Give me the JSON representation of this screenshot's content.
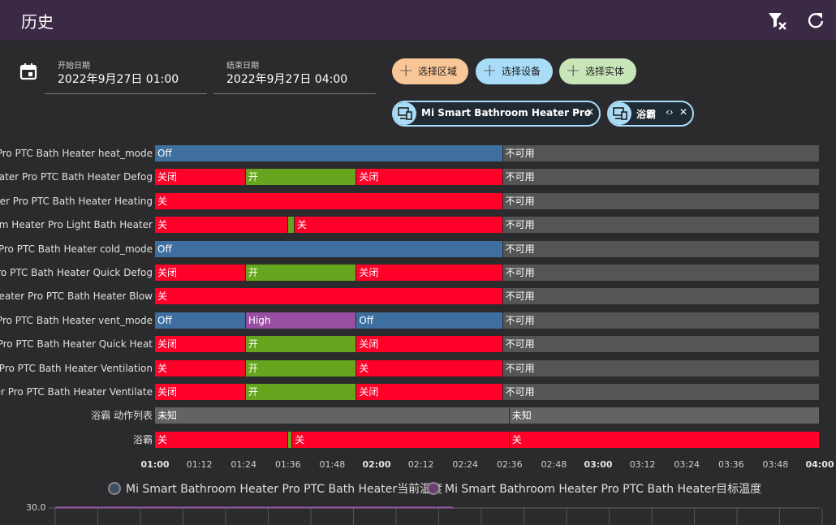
{
  "header": {
    "title": "历史",
    "bg_color": "#3b2a45"
  },
  "date_range": {
    "start_label": "开始日期",
    "start_value": "2022年9月27日 01:00",
    "end_label": "结束日期",
    "end_value": "2022年9月27日 04:00"
  },
  "pickers": [
    {
      "label": "选择区域",
      "color": "#f9c697"
    },
    {
      "label": "选择设备",
      "color": "#a9dcf6"
    },
    {
      "label": "选择实体",
      "color": "#c8e6b8"
    }
  ],
  "chips": [
    {
      "label": "Mi Smart Bathroom Heater Pro",
      "icon": "device-icon"
    },
    {
      "label": "浴霸",
      "icon": "device-icon"
    }
  ],
  "timeline": {
    "colors": {
      "off_blue": "#3f6f9f",
      "red": "#ff0029",
      "green": "#66a61e",
      "purple": "#984ea3",
      "gray": "#555555",
      "unknown": "#636363"
    },
    "rows": [
      {
        "label": "Mi Smart Bathroom Heater Pro PTC Bath Heater heat_mode",
        "segments": [
          {
            "text": "Off",
            "color": "off_blue",
            "start": 0,
            "end": 1.57
          },
          {
            "text": "不可用",
            "color": "gray",
            "start": 1.57,
            "end": 3
          }
        ]
      },
      {
        "label": "Mi Smart Bathroom Heater Pro PTC Bath Heater Defog",
        "segments": [
          {
            "text": "关闭",
            "color": "red",
            "start": 0,
            "end": 0.41
          },
          {
            "text": "开",
            "color": "green",
            "start": 0.41,
            "end": 0.91
          },
          {
            "text": "关闭",
            "color": "red",
            "start": 0.91,
            "end": 1.57
          },
          {
            "text": "不可用",
            "color": "gray",
            "start": 1.57,
            "end": 3
          }
        ]
      },
      {
        "label": "Mi Smart Bathroom Heater Pro PTC Bath Heater Heating",
        "segments": [
          {
            "text": "关",
            "color": "red",
            "start": 0,
            "end": 1.57
          },
          {
            "text": "不可用",
            "color": "gray",
            "start": 1.57,
            "end": 3
          }
        ]
      },
      {
        "label": "Mi Smart Bathroom Heater Pro Light Bath Heater",
        "segments": [
          {
            "text": "关",
            "color": "red",
            "start": 0,
            "end": 0.6
          },
          {
            "text": "",
            "color": "green",
            "start": 0.6,
            "end": 0.63
          },
          {
            "text": "关",
            "color": "red",
            "start": 0.63,
            "end": 1.57
          },
          {
            "text": "不可用",
            "color": "gray",
            "start": 1.57,
            "end": 3
          }
        ]
      },
      {
        "label": "Mi Smart Bathroom Heater Pro PTC Bath Heater cold_mode",
        "segments": [
          {
            "text": "Off",
            "color": "off_blue",
            "start": 0,
            "end": 1.57
          },
          {
            "text": "不可用",
            "color": "gray",
            "start": 1.57,
            "end": 3
          }
        ]
      },
      {
        "label": "Mi Smart Bathroom Heater Pro PTC Bath Heater Quick Defog",
        "segments": [
          {
            "text": "关闭",
            "color": "red",
            "start": 0,
            "end": 0.41
          },
          {
            "text": "开",
            "color": "green",
            "start": 0.41,
            "end": 0.91
          },
          {
            "text": "关闭",
            "color": "red",
            "start": 0.91,
            "end": 1.57
          },
          {
            "text": "不可用",
            "color": "gray",
            "start": 1.57,
            "end": 3
          }
        ]
      },
      {
        "label": "Mi Smart Bathroom Heater Pro PTC Bath Heater Blow",
        "segments": [
          {
            "text": "关",
            "color": "red",
            "start": 0,
            "end": 1.57
          },
          {
            "text": "不可用",
            "color": "gray",
            "start": 1.57,
            "end": 3
          }
        ]
      },
      {
        "label": "Mi Smart Bathroom Heater Pro PTC Bath Heater vent_mode",
        "segments": [
          {
            "text": "Off",
            "color": "off_blue",
            "start": 0,
            "end": 0.41
          },
          {
            "text": "High",
            "color": "purple",
            "start": 0.41,
            "end": 0.91
          },
          {
            "text": "Off",
            "color": "off_blue",
            "start": 0.91,
            "end": 1.57
          },
          {
            "text": "不可用",
            "color": "gray",
            "start": 1.57,
            "end": 3
          }
        ]
      },
      {
        "label": "Mi Smart Bathroom Heater Pro PTC Bath Heater Quick Heat",
        "segments": [
          {
            "text": "关闭",
            "color": "red",
            "start": 0,
            "end": 0.41
          },
          {
            "text": "开",
            "color": "green",
            "start": 0.41,
            "end": 0.91
          },
          {
            "text": "关闭",
            "color": "red",
            "start": 0.91,
            "end": 1.57
          },
          {
            "text": "不可用",
            "color": "gray",
            "start": 1.57,
            "end": 3
          }
        ]
      },
      {
        "label": "Mi Smart Bathroom Heater Pro PTC Bath Heater Ventilation",
        "segments": [
          {
            "text": "关",
            "color": "red",
            "start": 0,
            "end": 0.41
          },
          {
            "text": "开",
            "color": "green",
            "start": 0.41,
            "end": 0.91
          },
          {
            "text": "关",
            "color": "red",
            "start": 0.91,
            "end": 1.57
          },
          {
            "text": "不可用",
            "color": "gray",
            "start": 1.57,
            "end": 3
          }
        ]
      },
      {
        "label": "Mi Smart Bathroom Heater Pro PTC Bath Heater Ventilate",
        "segments": [
          {
            "text": "关闭",
            "color": "red",
            "start": 0,
            "end": 0.41
          },
          {
            "text": "开",
            "color": "green",
            "start": 0.41,
            "end": 0.91
          },
          {
            "text": "关闭",
            "color": "red",
            "start": 0.91,
            "end": 1.57
          },
          {
            "text": "不可用",
            "color": "gray",
            "start": 1.57,
            "end": 3
          }
        ]
      },
      {
        "label": "浴霸 动作列表",
        "segments": [
          {
            "text": "未知",
            "color": "unknown",
            "start": 0,
            "end": 1.6
          },
          {
            "text": "未知",
            "color": "unknown",
            "start": 1.6,
            "end": 3
          }
        ]
      },
      {
        "label": "浴霸",
        "segments": [
          {
            "text": "关",
            "color": "red",
            "start": 0,
            "end": 0.6
          },
          {
            "text": "",
            "color": "green",
            "start": 0.6,
            "end": 0.62
          },
          {
            "text": "关",
            "color": "red",
            "start": 0.62,
            "end": 1.6
          },
          {
            "text": "关",
            "color": "red",
            "start": 1.6,
            "end": 3
          }
        ]
      }
    ],
    "x_ticks": [
      {
        "label": "01:00",
        "bold": true
      },
      {
        "label": "01:12",
        "bold": false
      },
      {
        "label": "01:24",
        "bold": false
      },
      {
        "label": "01:36",
        "bold": false
      },
      {
        "label": "01:48",
        "bold": false
      },
      {
        "label": "02:00",
        "bold": true
      },
      {
        "label": "02:12",
        "bold": false
      },
      {
        "label": "02:24",
        "bold": false
      },
      {
        "label": "02:36",
        "bold": false
      },
      {
        "label": "02:48",
        "bold": false
      },
      {
        "label": "03:00",
        "bold": true
      },
      {
        "label": "03:12",
        "bold": false
      },
      {
        "label": "03:24",
        "bold": false
      },
      {
        "label": "03:36",
        "bold": false
      },
      {
        "label": "03:48",
        "bold": false
      },
      {
        "label": "04:00",
        "bold": true
      }
    ]
  },
  "line_chart": {
    "legend": [
      {
        "label": "Mi Smart Bathroom Heater Pro PTC Bath Heater当前温度",
        "color": "#3f4e63"
      },
      {
        "label": "Mi Smart Bathroom Heater Pro PTC Bath Heater目标温度",
        "color": "#6b3d73"
      }
    ],
    "y_label": "30.0"
  }
}
